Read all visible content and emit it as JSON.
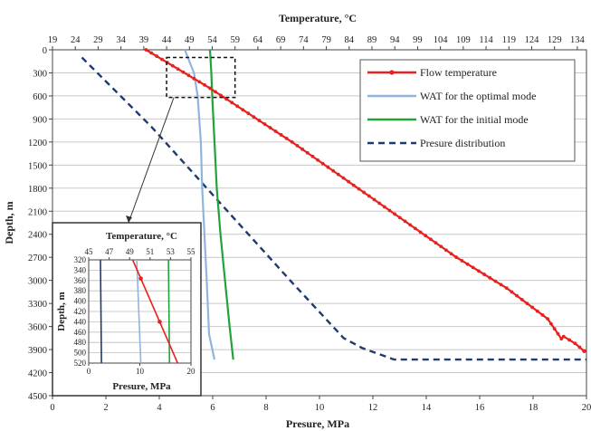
{
  "chart_data": [
    {
      "type": "line",
      "title": "",
      "xlabel_top": "Temperature, °C",
      "xlabel_bottom": "Presure, MPa",
      "ylabel": "Depth, m",
      "x_top_ticks": [
        "19",
        "24",
        "29",
        "34",
        "39",
        "44",
        "49",
        "54",
        "59",
        "64",
        "69",
        "74",
        "79",
        "84",
        "89",
        "94",
        "99",
        "104",
        "109",
        "114",
        "119",
        "124",
        "129",
        "134"
      ],
      "x_top_lim": [
        19,
        136
      ],
      "x_bottom_ticks": [
        "0",
        "2",
        "4",
        "6",
        "8",
        "10",
        "12",
        "14",
        "16",
        "18",
        "20"
      ],
      "x_bottom_lim": [
        0,
        20
      ],
      "y_ticks": [
        "0",
        "300",
        "600",
        "900",
        "1200",
        "1500",
        "1800",
        "2100",
        "2400",
        "2700",
        "3000",
        "3300",
        "3600",
        "3900",
        "4200",
        "4500"
      ],
      "y_lim": [
        0,
        4500
      ],
      "y_inverted": true,
      "grid": "horizontal",
      "legend_position": "top-right",
      "series": [
        {
          "name": "Flow temperature",
          "axis": "temperature",
          "color": "#e8201e",
          "style": "line-markers",
          "x": [
            39.5,
            53.5,
            71.5,
            89.5,
            107.5,
            118.5,
            127.5,
            130.5,
            131.0,
            133.5,
            135.5
          ],
          "y": [
            0,
            500,
            1200,
            1950,
            2700,
            3100,
            3500,
            3760,
            3730,
            3820,
            3920
          ]
        },
        {
          "name": "WAT for the optimal mode",
          "axis": "temperature",
          "color": "#8fb5df",
          "style": "line",
          "x": [
            48.0,
            50.0,
            50.8,
            51.5,
            51.8,
            52.3,
            52.8,
            53.3,
            54.5
          ],
          "y": [
            0,
            300,
            600,
            1200,
            1800,
            2400,
            3000,
            3700,
            4030
          ]
        },
        {
          "name": "WAT for the initial mode",
          "axis": "temperature",
          "color": "#22a33a",
          "style": "line",
          "x": [
            53.5,
            53.8,
            54.0,
            54.5,
            55.0,
            55.8,
            56.8,
            57.8,
            58.6
          ],
          "y": [
            0,
            300,
            600,
            1200,
            1800,
            2400,
            3000,
            3600,
            4030
          ]
        },
        {
          "name": "Presure distribution",
          "axis": "pressure",
          "color": "#1f3a6e",
          "style": "dashed",
          "x": [
            1.1,
            3.7,
            6.3,
            8.9,
            10.9,
            11.6,
            12.8,
            20.0
          ],
          "y": [
            100,
            1000,
            2000,
            3000,
            3750,
            3880,
            4030,
            4030
          ]
        }
      ]
    },
    {
      "type": "line",
      "title": "",
      "xlabel_top": "Temperature, °C",
      "xlabel_bottom": "Presure, MPa",
      "ylabel": "Depth, m",
      "x_top_ticks": [
        "45",
        "47",
        "49",
        "51",
        "53",
        "55"
      ],
      "x_top_lim": [
        45,
        55
      ],
      "x_bottom_ticks": [
        "0",
        "10",
        "20"
      ],
      "x_bottom_lim": [
        0,
        20
      ],
      "y_ticks": [
        "320",
        "340",
        "360",
        "380",
        "400",
        "420",
        "440",
        "460",
        "480",
        "500",
        "520"
      ],
      "y_lim": [
        320,
        520
      ],
      "y_inverted": true,
      "grid": "horizontal",
      "series": [
        {
          "name": "Flow temperature",
          "axis": "temperature",
          "color": "#e8201e",
          "x": [
            49.3,
            53.7
          ],
          "y": [
            320,
            520
          ]
        },
        {
          "name": "WAT for the optimal mode",
          "axis": "temperature",
          "color": "#8fb5df",
          "x": [
            49.7,
            50.1
          ],
          "y": [
            320,
            520
          ]
        },
        {
          "name": "WAT for the initial mode",
          "axis": "temperature",
          "color": "#22a33a",
          "x": [
            52.8,
            52.9
          ],
          "y": [
            320,
            520
          ]
        },
        {
          "name": "Presure distribution",
          "axis": "pressure",
          "color": "#1f3a6e",
          "x": [
            2.3,
            2.5
          ],
          "y": [
            320,
            520
          ]
        }
      ]
    }
  ]
}
